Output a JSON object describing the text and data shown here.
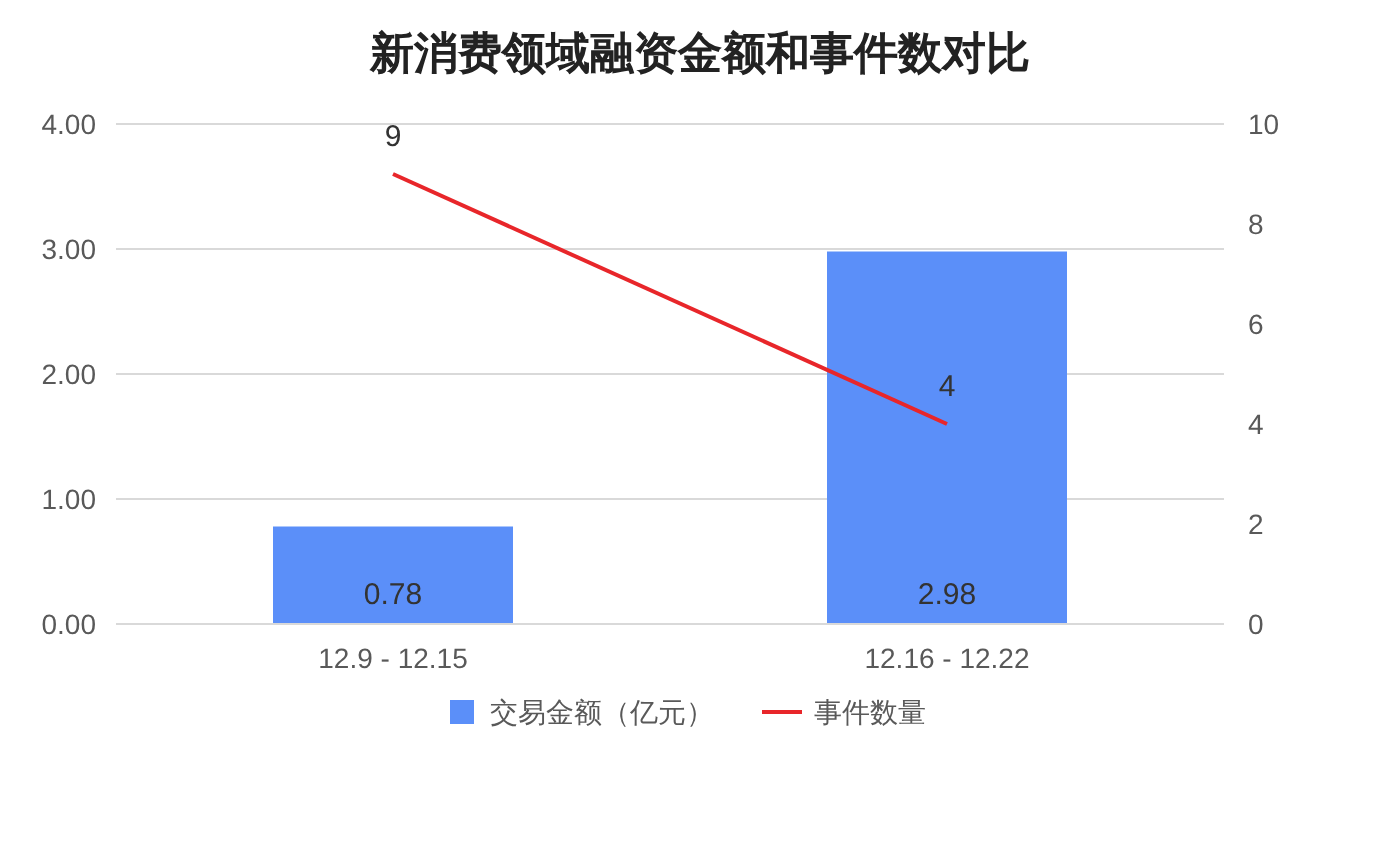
{
  "chart_data": {
    "type": "bar",
    "title": "新消费领域融资金额和事件数对比",
    "categories": [
      "12.9 - 12.15",
      "12.16 - 12.22"
    ],
    "series": [
      {
        "name": "交易金额（亿元）",
        "color": "#5b8ff9",
        "values": [
          0.78,
          2.98
        ]
      },
      {
        "name": "事件数量",
        "type": "line",
        "axis": "y2",
        "color": "#e8262a",
        "values": [
          9,
          4
        ]
      }
    ],
    "ylim": [
      0,
      4
    ],
    "yticks": [
      {
        "value": 0,
        "label": "0.00"
      },
      {
        "value": 1,
        "label": "1.00"
      },
      {
        "value": 2,
        "label": "2.00"
      },
      {
        "value": 3,
        "label": "3.00"
      },
      {
        "value": 4,
        "label": "4.00"
      }
    ],
    "y2lim": [
      0,
      10
    ],
    "y2ticks": [
      0,
      2,
      4,
      6,
      8,
      10
    ],
    "grid": "y",
    "legend": "bottom",
    "data_labels": true,
    "marker": "none"
  }
}
